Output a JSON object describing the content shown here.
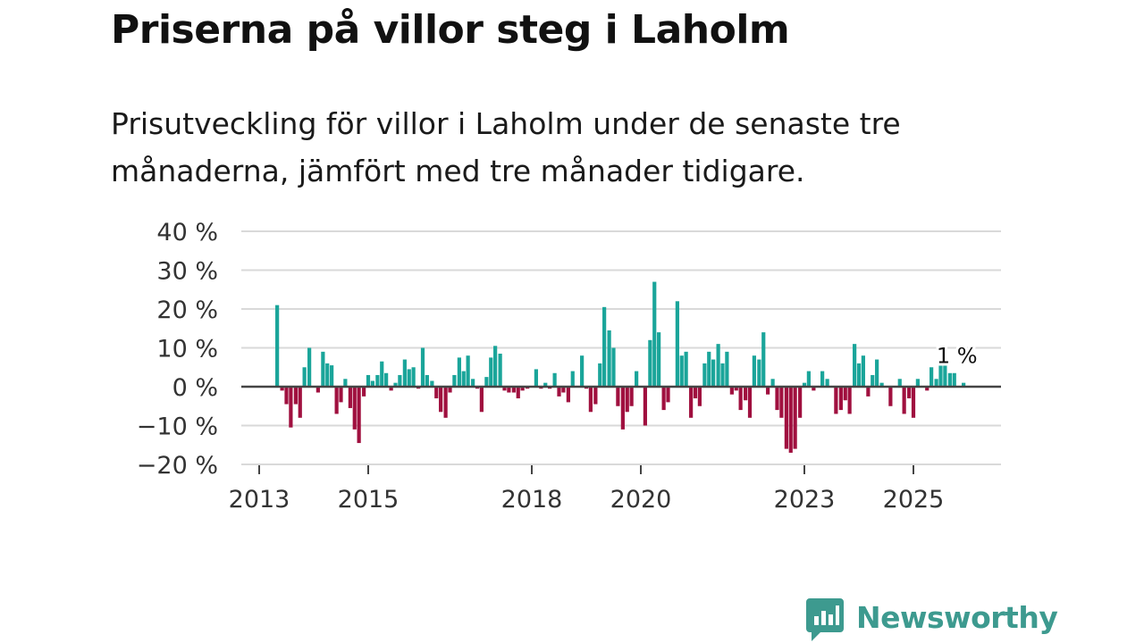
{
  "header": {
    "title": "Priserna på villor steg i Laholm",
    "subtitle": "Prisutveckling för villor i Laholm under de senaste tre månaderna, jämfört med tre månader tidigare."
  },
  "branding": {
    "logo_text": "Newsworthy"
  },
  "colors": {
    "positive": "#1aa59a",
    "negative": "#a0103f",
    "grid": "#d9d9d9",
    "zero_line": "#444444",
    "brand": "#3d9a8f"
  },
  "chart_data": {
    "type": "bar",
    "title": "Priserna på villor steg i Laholm",
    "xlabel": "",
    "ylabel": "",
    "unit": "%",
    "ylim": [
      -20,
      40
    ],
    "y_ticks": [
      40,
      30,
      20,
      10,
      0,
      -10,
      -20
    ],
    "y_tick_labels": [
      "40 %",
      "30 %",
      "20 %",
      "10 %",
      "0 %",
      "−10 %",
      "−20 %"
    ],
    "x_range": [
      2013.0,
      2026.0
    ],
    "x_ticks": [
      2013,
      2015,
      2018,
      2020,
      2023,
      2025
    ],
    "x_tick_labels": [
      "2013",
      "2015",
      "2018",
      "2020",
      "2023",
      "2025"
    ],
    "annotation": {
      "label": "1 %",
      "x": 2025.75,
      "y": 1
    },
    "series": [
      {
        "name": "Prisutveckling",
        "x": [
          2013.33,
          2013.42,
          2013.5,
          2013.58,
          2013.67,
          2013.75,
          2013.83,
          2013.92,
          2014.08,
          2014.17,
          2014.25,
          2014.33,
          2014.42,
          2014.5,
          2014.58,
          2014.67,
          2014.75,
          2014.83,
          2014.92,
          2015.0,
          2015.08,
          2015.17,
          2015.25,
          2015.33,
          2015.42,
          2015.5,
          2015.58,
          2015.67,
          2015.75,
          2015.83,
          2015.92,
          2016.0,
          2016.08,
          2016.17,
          2016.25,
          2016.33,
          2016.42,
          2016.5,
          2016.58,
          2016.67,
          2016.75,
          2016.83,
          2016.92,
          2017.0,
          2017.08,
          2017.17,
          2017.25,
          2017.33,
          2017.42,
          2017.5,
          2017.58,
          2017.67,
          2017.75,
          2017.83,
          2017.92,
          2018.08,
          2018.17,
          2018.25,
          2018.33,
          2018.42,
          2018.5,
          2018.58,
          2018.67,
          2018.75,
          2018.92,
          2019.0,
          2019.08,
          2019.17,
          2019.25,
          2019.33,
          2019.42,
          2019.5,
          2019.58,
          2019.67,
          2019.75,
          2019.83,
          2019.92,
          2020.08,
          2020.17,
          2020.25,
          2020.33,
          2020.42,
          2020.5,
          2020.67,
          2020.75,
          2020.83,
          2020.92,
          2021.0,
          2021.08,
          2021.17,
          2021.25,
          2021.33,
          2021.42,
          2021.5,
          2021.58,
          2021.67,
          2021.75,
          2021.83,
          2021.92,
          2022.0,
          2022.08,
          2022.17,
          2022.25,
          2022.33,
          2022.42,
          2022.5,
          2022.58,
          2022.67,
          2022.75,
          2022.83,
          2022.92,
          2023.0,
          2023.08,
          2023.17,
          2023.33,
          2023.42,
          2023.58,
          2023.67,
          2023.75,
          2023.83,
          2023.92,
          2024.0,
          2024.08,
          2024.17,
          2024.25,
          2024.33,
          2024.42,
          2024.58,
          2024.75,
          2024.83,
          2024.92,
          2025.0,
          2025.08,
          2025.25,
          2025.33,
          2025.42,
          2025.5,
          2025.58,
          2025.67,
          2025.75,
          2025.92
        ],
        "values": [
          21,
          -1,
          -4.5,
          -10.5,
          -4.5,
          -8,
          5,
          10,
          -1.5,
          9,
          6,
          5.5,
          -7,
          -4,
          2,
          -5.5,
          -11,
          -14.5,
          -2.5,
          3,
          1.5,
          3,
          6.5,
          3.5,
          -1,
          1,
          3,
          7,
          4.5,
          5,
          -0.5,
          10,
          3,
          1.5,
          -3,
          -6.5,
          -8,
          -1.5,
          3,
          7.5,
          4,
          8,
          2,
          -0.5,
          -6.5,
          2.5,
          7.5,
          10.5,
          8.5,
          -1,
          -1.5,
          -1.5,
          -3,
          -1,
          -0.5,
          4.5,
          -0.5,
          1,
          -0.5,
          3.5,
          -2.5,
          -1.5,
          -4,
          4,
          8,
          -0.5,
          -6.5,
          -4.5,
          6,
          20.5,
          14.5,
          10,
          -5,
          -11,
          -6.5,
          -5,
          4,
          -10,
          12,
          27,
          14,
          -6,
          -4,
          22,
          8,
          9,
          -8,
          -3,
          -5,
          6,
          9,
          7,
          11,
          6,
          9,
          -2,
          -1,
          -6,
          -3.5,
          -8,
          8,
          7,
          14,
          -2,
          2,
          -6,
          -8,
          -16,
          -17,
          -16,
          -8,
          1,
          4,
          -1,
          4,
          2,
          -7,
          -6,
          -3.5,
          -7,
          11,
          6,
          8,
          -2.5,
          3,
          7,
          1,
          -5,
          2,
          -7,
          -3,
          -8,
          2,
          -1,
          5,
          2,
          6,
          6,
          3.5,
          3.5,
          1
        ]
      }
    ]
  }
}
